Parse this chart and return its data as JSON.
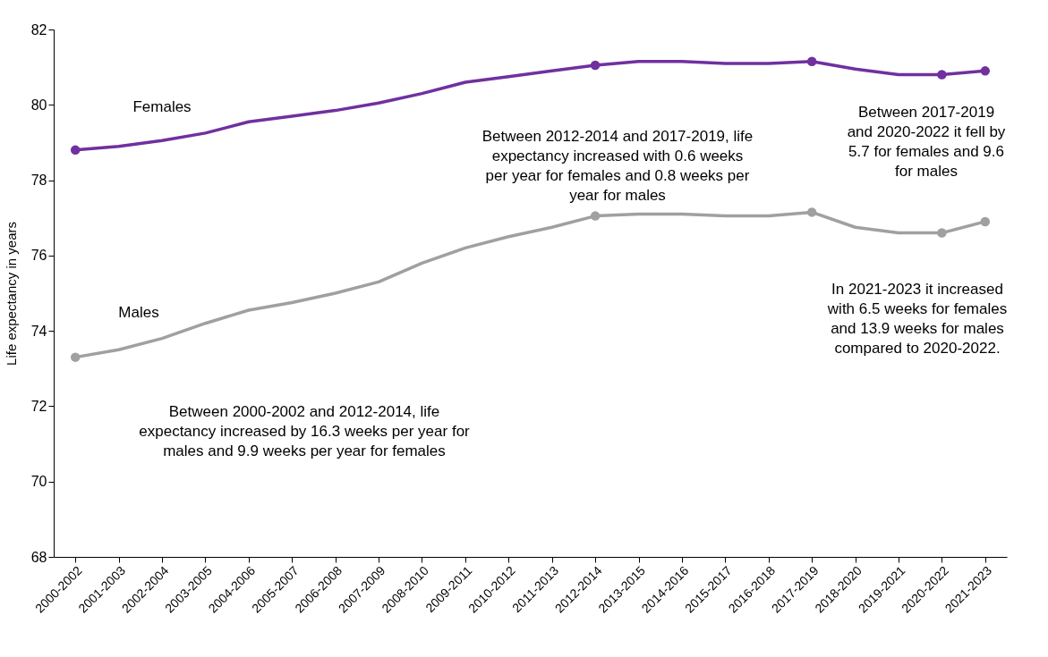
{
  "chart_data": {
    "type": "line",
    "ylabel": "Life expectancy in years",
    "categories": [
      "2000-2002",
      "2001-2003",
      "2002-2004",
      "2003-2005",
      "2004-2006",
      "2005-2007",
      "2006-2008",
      "2007-2009",
      "2008-2010",
      "2009-2011",
      "2010-2012",
      "2011-2013",
      "2012-2014",
      "2013-2015",
      "2014-2016",
      "2015-2017",
      "2016-2018",
      "2017-2019",
      "2018-2020",
      "2019-2021",
      "2020-2022",
      "2021-2023"
    ],
    "series": [
      {
        "name": "Females",
        "color": "#7030a0",
        "values": [
          78.8,
          78.9,
          79.05,
          79.25,
          79.55,
          79.7,
          79.85,
          80.05,
          80.3,
          80.6,
          80.75,
          80.9,
          81.05,
          81.15,
          81.15,
          81.1,
          81.1,
          81.15,
          80.95,
          80.8,
          80.8,
          80.9
        ]
      },
      {
        "name": "Males",
        "color": "#a0a0a0",
        "values": [
          73.3,
          73.5,
          73.8,
          74.2,
          74.55,
          74.75,
          75.0,
          75.3,
          75.8,
          76.2,
          76.5,
          76.75,
          77.05,
          77.1,
          77.1,
          77.05,
          77.05,
          77.15,
          76.75,
          76.6,
          76.6,
          76.9
        ]
      },
      {
        "type": "scatter",
        "color": "#7030a0",
        "x": [
          "2000-2002",
          "2012-2014",
          "2017-2019",
          "2020-2022",
          "2021-2023"
        ],
        "values": [
          78.8,
          81.05,
          81.15,
          80.8,
          80.9
        ]
      },
      {
        "type": "scatter",
        "color": "#a0a0a0",
        "x": [
          "2000-2002",
          "2012-2014",
          "2017-2019",
          "2020-2022",
          "2021-2023"
        ],
        "values": [
          73.3,
          77.05,
          77.15,
          76.6,
          76.9
        ]
      }
    ],
    "ylim": [
      68,
      82
    ],
    "yticks": [
      68,
      70,
      72,
      74,
      76,
      78,
      80,
      82
    ],
    "grid": false,
    "annotations": [
      "Between 2012-2014 and 2017-2019, life expectancy increased with 0.6 weeks per year for females and 0.8 weeks per year for males",
      "Between 2017-2019 and 2020-2022 it fell by 5.7 for females and 9.6 for males",
      "In 2021-2023 it increased with 6.5 weeks for females and 13.9 weeks for males compared to 2020-2022.",
      "Between 2000-2002 and 2012-2014, life expectancy increased by 16.3 weeks per year for males and 9.9 weeks per year for females"
    ]
  }
}
